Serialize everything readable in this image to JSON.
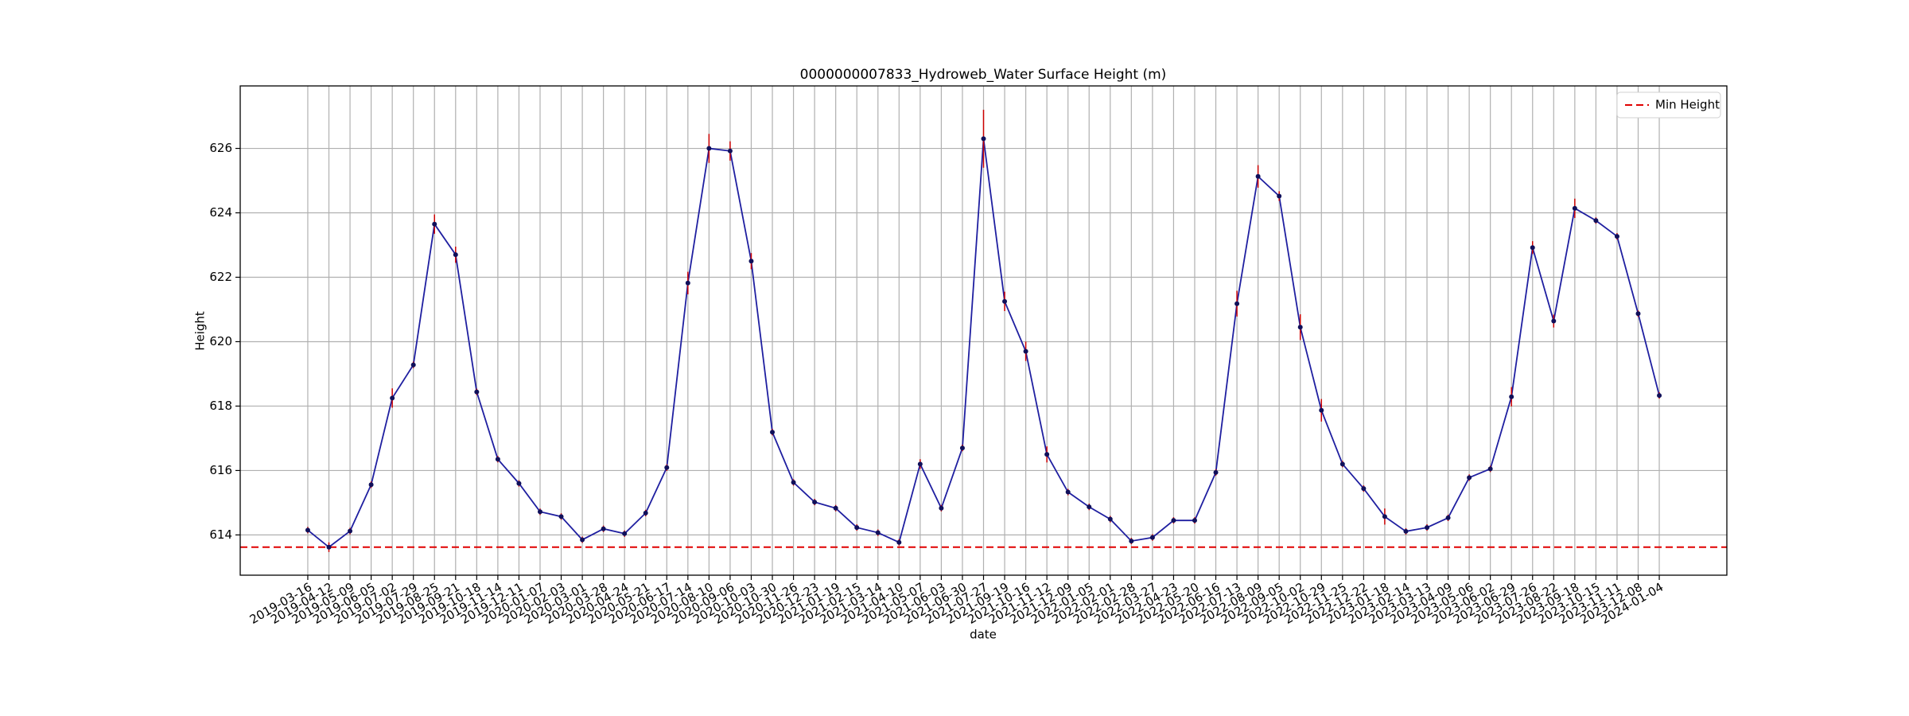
{
  "chart_data": {
    "type": "line",
    "title": "0000000007833_Hydroweb_Water Surface Height (m)",
    "x_label": "date",
    "y_label": "Height",
    "categories": [
      "2019-03-16",
      "2019-04-12",
      "2019-05-09",
      "2019-06-05",
      "2019-07-02",
      "2019-07-29",
      "2019-08-25",
      "2019-09-21",
      "2019-10-18",
      "2019-11-14",
      "2019-12-11",
      "2020-01-07",
      "2020-02-03",
      "2020-03-01",
      "2020-03-28",
      "2020-04-24",
      "2020-05-21",
      "2020-06-17",
      "2020-07-14",
      "2020-08-10",
      "2020-09-06",
      "2020-10-03",
      "2020-10-30",
      "2020-11-26",
      "2020-12-23",
      "2021-01-19",
      "2021-02-15",
      "2021-03-14",
      "2021-04-10",
      "2021-05-07",
      "2021-06-03",
      "2021-06-30",
      "2021-07-27",
      "2021-09-19",
      "2021-10-16",
      "2021-11-12",
      "2021-12-09",
      "2022-01-05",
      "2022-02-01",
      "2022-02-28",
      "2022-03-27",
      "2022-04-23",
      "2022-05-20",
      "2022-06-16",
      "2022-07-13",
      "2022-08-09",
      "2022-09-05",
      "2022-10-02",
      "2022-10-29",
      "2022-11-25",
      "2022-12-22",
      "2023-01-18",
      "2023-02-14",
      "2023-03-13",
      "2023-04-09",
      "2023-05-06",
      "2023-06-02",
      "2023-06-29",
      "2023-07-26",
      "2023-08-22",
      "2023-09-18",
      "2023-10-15",
      "2023-11-11",
      "2023-12-08",
      "2024-01-04"
    ],
    "values": [
      614.15,
      613.62,
      614.12,
      615.56,
      618.25,
      619.28,
      623.65,
      622.7,
      618.44,
      616.35,
      615.6,
      614.72,
      614.57,
      613.85,
      614.19,
      614.04,
      614.68,
      616.09,
      621.82,
      626.0,
      625.92,
      622.5,
      617.19,
      615.63,
      615.02,
      614.83,
      614.23,
      614.07,
      613.77,
      616.2,
      614.83,
      616.7,
      626.3,
      621.25,
      619.7,
      616.5,
      615.33,
      614.87,
      614.49,
      613.81,
      613.92,
      614.45,
      614.45,
      615.94,
      621.18,
      625.13,
      624.52,
      620.45,
      617.87,
      616.2,
      615.44,
      614.57,
      614.11,
      614.23,
      614.53,
      615.78,
      616.05,
      618.29,
      622.92,
      620.64,
      624.14,
      623.76,
      623.27,
      620.87,
      618.33
    ],
    "errors": [
      0.1,
      0.15,
      0.1,
      0.1,
      0.3,
      0.1,
      0.3,
      0.25,
      0.1,
      0.1,
      0.1,
      0.1,
      0.1,
      0.1,
      0.1,
      0.1,
      0.1,
      0.1,
      0.35,
      0.45,
      0.3,
      0.25,
      0.1,
      0.1,
      0.1,
      0.1,
      0.1,
      0.1,
      0.1,
      0.15,
      0.1,
      0.1,
      0.9,
      0.3,
      0.3,
      0.25,
      0.1,
      0.1,
      0.1,
      0.1,
      0.1,
      0.1,
      0.1,
      0.1,
      0.4,
      0.35,
      0.15,
      0.4,
      0.35,
      0.1,
      0.1,
      0.25,
      0.1,
      0.1,
      0.1,
      0.1,
      0.1,
      0.3,
      0.2,
      0.2,
      0.3,
      0.1,
      0.1,
      0.1,
      0.1
    ],
    "color": "#1f1fa0",
    "error_color": "#cc0000",
    "min_height": {
      "name": "Min Height",
      "value": 613.62,
      "color": "#e00000"
    },
    "ylim": [
      612.75,
      627.94
    ],
    "yticks": [
      614,
      616,
      618,
      620,
      622,
      624,
      626
    ],
    "grid": true,
    "legend_position": "upper right"
  }
}
